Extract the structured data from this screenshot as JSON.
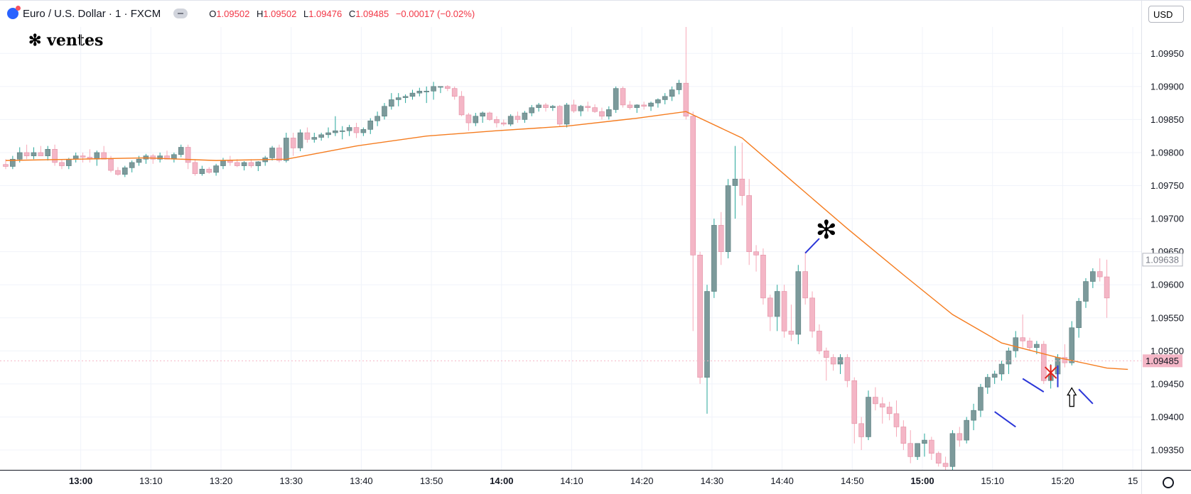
{
  "header": {
    "symbol": "Euro / U.S. Dollar · 1 · FXCM",
    "o_label": "O",
    "o_value": "1.09502",
    "h_label": "H",
    "h_value": "1.09502",
    "l_label": "L",
    "l_value": "1.09476",
    "c_label": "C",
    "c_value": "1.09485",
    "change": "−0.00017 (−0.02%)"
  },
  "annotation_title": "ventes",
  "currency": "USD",
  "colors": {
    "up": "#7c9a9b",
    "down": "#f4b6c6",
    "ma": "#f57c1f",
    "marker": "#2b36d8"
  },
  "chart_data": {
    "type": "candlestick",
    "ylim": [
      1.0932,
      1.0999
    ],
    "x_ticks": [
      "13:00",
      "13:10",
      "13:20",
      "13:30",
      "13:40",
      "13:50",
      "14:00",
      "14:10",
      "14:20",
      "14:30",
      "14:40",
      "14:50",
      "15:00",
      "15:10",
      "15:20",
      "15"
    ],
    "bold_x_ticks": [
      "13:00",
      "14:00",
      "15:00"
    ],
    "y_ticks": [
      "1.09950",
      "1.09900",
      "1.09850",
      "1.09800",
      "1.09750",
      "1.09700",
      "1.09650",
      "1.09600",
      "1.09550",
      "1.09500",
      "1.09450",
      "1.09400",
      "1.09350"
    ],
    "price_labels": [
      {
        "value": 1.09638,
        "text": "1.09638",
        "style": "outline"
      },
      {
        "value": 1.09485,
        "text": "1.09485",
        "style": "filled"
      }
    ],
    "candles": [
      [
        1.09782,
        1.0979,
        1.09775,
        1.09779
      ],
      [
        1.09779,
        1.09795,
        1.09775,
        1.0979
      ],
      [
        1.0979,
        1.09808,
        1.09785,
        1.098
      ],
      [
        1.098,
        1.09812,
        1.0979,
        1.09795
      ],
      [
        1.09795,
        1.09808,
        1.0979,
        1.098
      ],
      [
        1.098,
        1.0981,
        1.09795,
        1.09795
      ],
      [
        1.09795,
        1.0981,
        1.09788,
        1.09805
      ],
      [
        1.09805,
        1.09812,
        1.0978,
        1.09785
      ],
      [
        1.09785,
        1.0979,
        1.09775,
        1.0978
      ],
      [
        1.0978,
        1.09792,
        1.09775,
        1.0979
      ],
      [
        1.0979,
        1.098,
        1.09785,
        1.09795
      ],
      [
        1.09795,
        1.098,
        1.09785,
        1.09793
      ],
      [
        1.09793,
        1.09805,
        1.09785,
        1.0979
      ],
      [
        1.0979,
        1.09803,
        1.0978,
        1.098
      ],
      [
        1.098,
        1.0981,
        1.0979,
        1.0979
      ],
      [
        1.0979,
        1.09795,
        1.0977,
        1.09773
      ],
      [
        1.09773,
        1.09778,
        1.09765,
        1.09767
      ],
      [
        1.09767,
        1.0978,
        1.09763,
        1.09777
      ],
      [
        1.09777,
        1.09788,
        1.0977,
        1.09785
      ],
      [
        1.09785,
        1.09795,
        1.0978,
        1.0979
      ],
      [
        1.0979,
        1.09798,
        1.09783,
        1.09795
      ],
      [
        1.09795,
        1.09798,
        1.09783,
        1.0979
      ],
      [
        1.0979,
        1.098,
        1.09785,
        1.09795
      ],
      [
        1.09795,
        1.09803,
        1.0979,
        1.0979
      ],
      [
        1.0979,
        1.098,
        1.09785,
        1.09797
      ],
      [
        1.09797,
        1.09812,
        1.09793,
        1.09808
      ],
      [
        1.09808,
        1.09812,
        1.09775,
        1.09785
      ],
      [
        1.09785,
        1.0979,
        1.09765,
        1.09768
      ],
      [
        1.09768,
        1.0978,
        1.09765,
        1.09775
      ],
      [
        1.09775,
        1.09778,
        1.09768,
        1.0977
      ],
      [
        1.0977,
        1.09783,
        1.09765,
        1.0978
      ],
      [
        1.0978,
        1.09792,
        1.09775,
        1.09788
      ],
      [
        1.09788,
        1.09795,
        1.0978,
        1.09785
      ],
      [
        1.09785,
        1.0979,
        1.09778,
        1.0978
      ],
      [
        1.0978,
        1.09787,
        1.09773,
        1.09785
      ],
      [
        1.09785,
        1.0979,
        1.09777,
        1.0978
      ],
      [
        1.0978,
        1.09787,
        1.09772,
        1.09786
      ],
      [
        1.09786,
        1.09795,
        1.0978,
        1.09792
      ],
      [
        1.09792,
        1.0981,
        1.09788,
        1.09807
      ],
      [
        1.09807,
        1.09812,
        1.09785,
        1.09788
      ],
      [
        1.09788,
        1.0983,
        1.09785,
        1.09822
      ],
      [
        1.09822,
        1.0983,
        1.09795,
        1.09807
      ],
      [
        1.09807,
        1.09835,
        1.09802,
        1.0983
      ],
      [
        1.0983,
        1.09838,
        1.09815,
        1.0982
      ],
      [
        1.0982,
        1.0983,
        1.09815,
        1.09823
      ],
      [
        1.09823,
        1.0983,
        1.09818,
        1.09827
      ],
      [
        1.09827,
        1.09838,
        1.09822,
        1.0983
      ],
      [
        1.0983,
        1.09855,
        1.09825,
        1.09833
      ],
      [
        1.09833,
        1.0984,
        1.0982,
        1.09833
      ],
      [
        1.09833,
        1.09842,
        1.09825,
        1.09838
      ],
      [
        1.09838,
        1.09845,
        1.09822,
        1.0983
      ],
      [
        1.0983,
        1.09838,
        1.09825,
        1.09835
      ],
      [
        1.09835,
        1.09852,
        1.09828,
        1.09848
      ],
      [
        1.09848,
        1.09862,
        1.0984,
        1.09855
      ],
      [
        1.09855,
        1.09875,
        1.0985,
        1.0987
      ],
      [
        1.0987,
        1.0989,
        1.09865,
        1.0988
      ],
      [
        1.0988,
        1.0989,
        1.0987,
        1.09883
      ],
      [
        1.09883,
        1.09888,
        1.09875,
        1.09885
      ],
      [
        1.09885,
        1.09895,
        1.0988,
        1.0989
      ],
      [
        1.0989,
        1.09898,
        1.09885,
        1.09893
      ],
      [
        1.09893,
        1.099,
        1.09875,
        1.09893
      ],
      [
        1.09893,
        1.09907,
        1.0988,
        1.099
      ],
      [
        1.099,
        1.099,
        1.0989,
        1.099
      ],
      [
        1.099,
        1.09902,
        1.09893,
        1.09897
      ],
      [
        1.09897,
        1.099,
        1.0988,
        1.09885
      ],
      [
        1.09885,
        1.09893,
        1.09855,
        1.09857
      ],
      [
        1.09857,
        1.0986,
        1.09833,
        1.09845
      ],
      [
        1.09845,
        1.0986,
        1.0984,
        1.09855
      ],
      [
        1.09855,
        1.09862,
        1.09845,
        1.0986
      ],
      [
        1.0986,
        1.09862,
        1.09848,
        1.0985
      ],
      [
        1.0985,
        1.09855,
        1.09838,
        1.09845
      ],
      [
        1.09845,
        1.0985,
        1.0984,
        1.09843
      ],
      [
        1.09843,
        1.09858,
        1.0984,
        1.09855
      ],
      [
        1.09855,
        1.09862,
        1.09845,
        1.0985
      ],
      [
        1.0985,
        1.09863,
        1.09845,
        1.0986
      ],
      [
        1.0986,
        1.09872,
        1.09855,
        1.09868
      ],
      [
        1.09868,
        1.09875,
        1.09862,
        1.09872
      ],
      [
        1.09872,
        1.09875,
        1.09862,
        1.09868
      ],
      [
        1.09868,
        1.09872,
        1.09863,
        1.0987
      ],
      [
        1.0987,
        1.09872,
        1.0984,
        1.09843
      ],
      [
        1.09843,
        1.09875,
        1.09838,
        1.09872
      ],
      [
        1.09872,
        1.0988,
        1.0986,
        1.09863
      ],
      [
        1.09863,
        1.09872,
        1.09855,
        1.0987
      ],
      [
        1.0987,
        1.09877,
        1.09862,
        1.09868
      ],
      [
        1.09868,
        1.09873,
        1.0986,
        1.09862
      ],
      [
        1.09862,
        1.09868,
        1.0985,
        1.09855
      ],
      [
        1.09855,
        1.0987,
        1.0985,
        1.09865
      ],
      [
        1.09865,
        1.099,
        1.0986,
        1.09897
      ],
      [
        1.09897,
        1.099,
        1.09868,
        1.09872
      ],
      [
        1.09872,
        1.09878,
        1.09865,
        1.09868
      ],
      [
        1.09868,
        1.09873,
        1.0986,
        1.09872
      ],
      [
        1.09872,
        1.09877,
        1.09865,
        1.0987
      ],
      [
        1.0987,
        1.09877,
        1.09863,
        1.09875
      ],
      [
        1.09875,
        1.09882,
        1.09868,
        1.0988
      ],
      [
        1.0988,
        1.0989,
        1.09873,
        1.09885
      ],
      [
        1.09885,
        1.099,
        1.09878,
        1.09895
      ],
      [
        1.09895,
        1.0991,
        1.09888,
        1.09905
      ],
      [
        1.09905,
        1.0999,
        1.0985,
        1.09855
      ],
      [
        1.09855,
        1.09862,
        1.0953,
        1.09645
      ],
      [
        1.09645,
        1.0965,
        1.0945,
        1.0946
      ],
      [
        1.0946,
        1.096,
        1.09405,
        1.0959
      ],
      [
        1.0959,
        1.097,
        1.0958,
        1.0969
      ],
      [
        1.0969,
        1.0971,
        1.0963,
        1.0965
      ],
      [
        1.0965,
        1.0976,
        1.0964,
        1.0975
      ],
      [
        1.0975,
        1.0981,
        1.097,
        1.0976
      ],
      [
        1.0976,
        1.09815,
        1.0972,
        1.09735
      ],
      [
        1.09735,
        1.0976,
        1.0963,
        1.0965
      ],
      [
        1.0965,
        1.0966,
        1.0962,
        1.09645
      ],
      [
        1.09645,
        1.09655,
        1.0957,
        1.0958
      ],
      [
        1.0958,
        1.09585,
        1.0953,
        1.09552
      ],
      [
        1.09552,
        1.096,
        1.0953,
        1.0959
      ],
      [
        1.0959,
        1.096,
        1.0952,
        1.0953
      ],
      [
        1.0953,
        1.0957,
        1.09515,
        1.09525
      ],
      [
        1.09525,
        1.0963,
        1.0951,
        1.0962
      ],
      [
        1.0962,
        1.0965,
        1.0957,
        1.0958
      ],
      [
        1.0958,
        1.0959,
        1.0952,
        1.0953
      ],
      [
        1.0953,
        1.0954,
        1.09495,
        1.095
      ],
      [
        1.095,
        1.09505,
        1.09455,
        1.0949
      ],
      [
        1.0949,
        1.09495,
        1.0947,
        1.0948
      ],
      [
        1.0948,
        1.09495,
        1.09465,
        1.0949
      ],
      [
        1.0949,
        1.09495,
        1.09445,
        1.09455
      ],
      [
        1.09455,
        1.0946,
        1.0936,
        1.0939
      ],
      [
        1.0939,
        1.094,
        1.0935,
        1.0937
      ],
      [
        1.0937,
        1.0944,
        1.09365,
        1.0943
      ],
      [
        1.0943,
        1.09445,
        1.0941,
        1.0942
      ],
      [
        1.0942,
        1.0943,
        1.0939,
        1.09415
      ],
      [
        1.09415,
        1.09423,
        1.09395,
        1.09405
      ],
      [
        1.09405,
        1.09425,
        1.0937,
        1.09385
      ],
      [
        1.09385,
        1.09395,
        1.0935,
        1.0936
      ],
      [
        1.0936,
        1.0938,
        1.0933,
        1.0934
      ],
      [
        1.0934,
        1.0936,
        1.09335,
        1.0936
      ],
      [
        1.0936,
        1.09375,
        1.0934,
        1.09365
      ],
      [
        1.09365,
        1.0937,
        1.09335,
        1.09345
      ],
      [
        1.09345,
        1.09348,
        1.09325,
        1.0933
      ],
      [
        1.0933,
        1.0934,
        1.0932,
        1.09325
      ],
      [
        1.09325,
        1.0938,
        1.0932,
        1.09375
      ],
      [
        1.09375,
        1.09385,
        1.09355,
        1.09365
      ],
      [
        1.09365,
        1.094,
        1.0936,
        1.09395
      ],
      [
        1.09395,
        1.0942,
        1.0938,
        1.0941
      ],
      [
        1.0941,
        1.0945,
        1.094,
        1.09445
      ],
      [
        1.09445,
        1.09465,
        1.09435,
        1.0946
      ],
      [
        1.0946,
        1.0947,
        1.0945,
        1.09465
      ],
      [
        1.09465,
        1.09485,
        1.09455,
        1.0948
      ],
      [
        1.0948,
        1.09505,
        1.09465,
        1.095
      ],
      [
        1.095,
        1.0953,
        1.0949,
        1.0952
      ],
      [
        1.0952,
        1.09555,
        1.09505,
        1.09515
      ],
      [
        1.09515,
        1.0952,
        1.095,
        1.09505
      ],
      [
        1.09505,
        1.09515,
        1.09495,
        1.0951
      ],
      [
        1.0951,
        1.09515,
        1.0945,
        1.09455
      ],
      [
        1.09455,
        1.0948,
        1.09443,
        1.09465
      ],
      [
        1.09465,
        1.09495,
        1.0946,
        1.0949
      ],
      [
        1.0949,
        1.0951,
        1.09475,
        1.09482
      ],
      [
        1.09482,
        1.09545,
        1.09478,
        1.09535
      ],
      [
        1.09535,
        1.0958,
        1.0952,
        1.09575
      ],
      [
        1.09575,
        1.0961,
        1.09565,
        1.09605
      ],
      [
        1.09605,
        1.09625,
        1.09595,
        1.0962
      ],
      [
        1.0962,
        1.0964,
        1.09605,
        1.09612
      ],
      [
        1.09612,
        1.09638,
        1.0955,
        1.0958
      ]
    ],
    "ma_line": [
      [
        0,
        1.09788
      ],
      [
        10,
        1.0979
      ],
      [
        20,
        1.09792
      ],
      [
        30,
        1.09788
      ],
      [
        40,
        1.0979
      ],
      [
        50,
        1.0981
      ],
      [
        60,
        1.09825
      ],
      [
        70,
        1.09833
      ],
      [
        80,
        1.0984
      ],
      [
        90,
        1.09852
      ],
      [
        97,
        1.09862
      ],
      [
        105,
        1.09822
      ],
      [
        112,
        1.09758
      ],
      [
        120,
        1.09685
      ],
      [
        128,
        1.09615
      ],
      [
        135,
        1.09555
      ],
      [
        142,
        1.09512
      ],
      [
        150,
        1.0949
      ],
      [
        157,
        1.09474
      ],
      [
        160,
        1.09472
      ]
    ],
    "annotations": [
      {
        "type": "asterisk",
        "index": 117,
        "value": 1.09685,
        "color": "#000000"
      },
      {
        "type": "segment",
        "from": [
          114,
          1.09648
        ],
        "to": [
          116,
          1.0967
        ],
        "color": "#2b36d8"
      },
      {
        "type": "segment",
        "from": [
          141,
          1.09408
        ],
        "to": [
          144,
          1.09385
        ],
        "color": "#2b36d8"
      },
      {
        "type": "segment",
        "from": [
          145,
          1.09458
        ],
        "to": [
          148,
          1.09438
        ],
        "color": "#2b36d8"
      },
      {
        "type": "segment",
        "from": [
          150,
          1.09478
        ],
        "to": [
          150,
          1.09445
        ],
        "color": "#2b36d8"
      },
      {
        "type": "segment",
        "from": [
          153,
          1.09442
        ],
        "to": [
          155,
          1.0942
        ],
        "color": "#2b36d8"
      },
      {
        "type": "cross",
        "index": 149,
        "value": 1.09467,
        "color": "#e0231c"
      },
      {
        "type": "arrow-up",
        "index": 152,
        "value": 1.0943,
        "color": "#000000"
      }
    ]
  }
}
